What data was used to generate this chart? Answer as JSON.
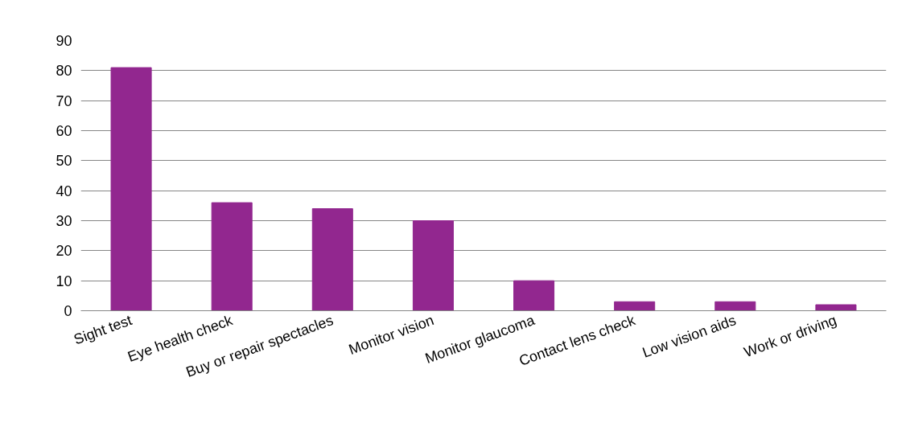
{
  "chart_data": {
    "type": "bar",
    "categories": [
      "Sight test",
      "Eye health check",
      "Buy or repair spectacles",
      "Monitor vision",
      "Monitor glaucoma",
      "Contact lens check",
      "Low vision aids",
      "Work or driving"
    ],
    "values": [
      81,
      36,
      34,
      30,
      10,
      3,
      3,
      2
    ],
    "color": "#92278f",
    "ylim": [
      0,
      90
    ],
    "yticks": [
      0,
      10,
      20,
      30,
      40,
      50,
      60,
      70,
      80,
      90
    ],
    "grid": "y"
  }
}
